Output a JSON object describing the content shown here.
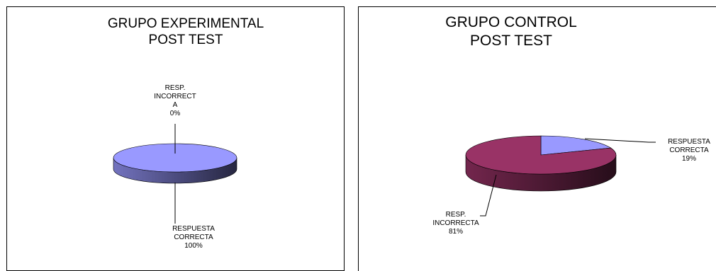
{
  "chart_data": [
    {
      "type": "pie",
      "title": [
        "GRUPO EXPERIMENTAL",
        "POST TEST"
      ],
      "slices": [
        {
          "label": [
            "RESP.",
            "INCORRECT",
            "A"
          ],
          "value": 0,
          "value_label": "0%",
          "color": "#9999ff"
        },
        {
          "label": [
            "RESPUESTA",
            "CORRECTA"
          ],
          "value": 100,
          "value_label": "100%",
          "color": "#9999ff"
        }
      ]
    },
    {
      "type": "pie",
      "title": [
        "GRUPO CONTROL",
        "POST TEST"
      ],
      "slices": [
        {
          "label": [
            "RESPUESTA",
            "CORRECTA"
          ],
          "value": 19,
          "value_label": "19%",
          "color": "#9999ff"
        },
        {
          "label": [
            "RESP.",
            "INCORRECTA"
          ],
          "value": 81,
          "value_label": "81%",
          "color": "#993366"
        }
      ]
    }
  ]
}
